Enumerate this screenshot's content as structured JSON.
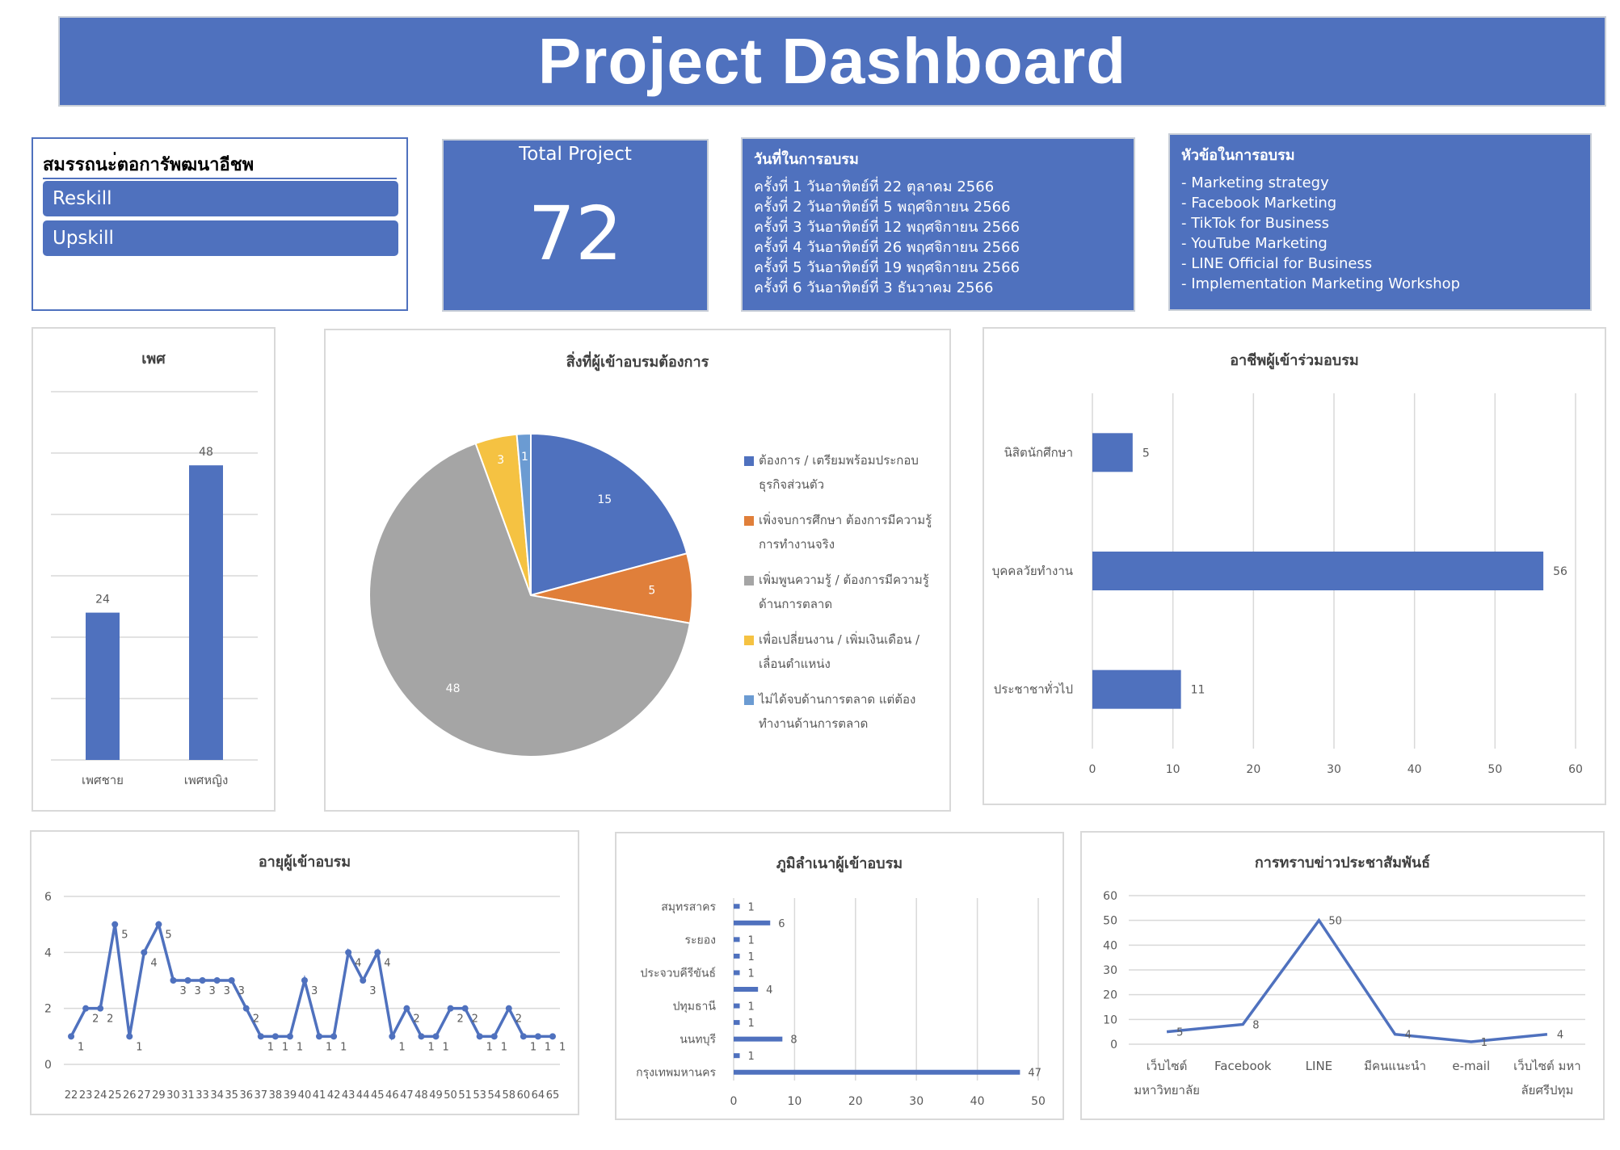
{
  "header": {
    "title": "Project Dashboard"
  },
  "slicer": {
    "title": "สมรรถนะ่ตอการัพฒนาอีชพ",
    "items": [
      "Reskill",
      "Upskill"
    ]
  },
  "total_project": {
    "label": "Total Project",
    "value": "72"
  },
  "training_dates": {
    "title": "วันที่ในการอบรม",
    "lines": [
      "ครั้งที่ 1 วันอาทิตย์ที่ 22 ตุลาคม 2566",
      "ครั้งที่ 2 วันอาทิตย์ที่ 5 พฤศจิกายน 2566",
      "ครั้งที่ 3 วันอาทิตย์ที่ 12 พฤศจิกายน 2566",
      "ครั้งที่ 4 วันอาทิตย์ที่ 26 พฤศจิกายน 2566",
      "ครั้งที่ 5 วันอาทิตย์ที่ 19 พฤศจิกายน 2566",
      "ครั้งที่ 6 วันอาทิตย์ที่ 3 ธันวาคม 2566"
    ]
  },
  "topics": {
    "title": "หัวข้อในการอบรม",
    "lines": [
      "- Marketing strategy",
      "- Facebook Marketing",
      "- TikTok for Business",
      "- YouTube Marketing",
      "- LINE Official for Business",
      "- Implementation Marketing Workshop"
    ]
  },
  "colors": {
    "accent": "#4f71be",
    "orange": "#e07f3a",
    "gray": "#a5a5a5",
    "yellow": "#f5c242",
    "lightblue": "#6b9bd2",
    "grid": "#d9d9d9"
  },
  "chart_data": [
    {
      "id": "gender",
      "type": "bar",
      "title": "เพศ",
      "categories": [
        "เพศชาย",
        "เพศหญิง"
      ],
      "values": [
        24,
        48
      ],
      "ylim": [
        0,
        60
      ],
      "grid": true
    },
    {
      "id": "needs",
      "type": "pie",
      "title": "สิ่งที่ผู้เข้าอบรมต้องการ",
      "labels": [
        "ต้องการ / เตรียมพร้อมประกอบธุรกิจส่วนตัว",
        "เพิ่งจบการศึกษา ต้องการมีความรู้การทำงานจริง",
        "เพิ่มพูนความรู้ / ต้องการมีความรู้ด้านการตลาด",
        "เพื่อเปลี่ยนงาน / เพิ่มเงินเดือน / เลื่อนตำแหน่ง",
        "ไม่ได้จบด้านการตลาด แต่ต้องทำงานด้านการตลาด"
      ],
      "legend_lines": [
        [
          "ต้องการ / เตรียมพร้อมประกอบ",
          "ธุรกิจส่วนตัว"
        ],
        [
          "เพิ่งจบการศึกษา ต้องการมีความรู้",
          "การทำงานจริง"
        ],
        [
          "เพิ่มพูนความรู้ / ต้องการมีความรู้",
          "ด้านการตลาด"
        ],
        [
          "เพื่อเปลี่ยนงาน / เพิ่มเงินเดือน /",
          "เลื่อนตำแหน่ง"
        ],
        [
          "ไม่ได้จบด้านการตลาด แต่ต้อง",
          "ทำงานด้านการตลาด"
        ]
      ],
      "values": [
        15,
        5,
        48,
        3,
        1
      ],
      "colors": [
        "#4f71be",
        "#e07f3a",
        "#a5a5a5",
        "#f5c242",
        "#6b9bd2"
      ],
      "legend": "right"
    },
    {
      "id": "occupation",
      "type": "bar",
      "orientation": "horizontal",
      "title": "อาชีพผู้เข้าร่วมอบรม",
      "categories": [
        "นิสิตนักศึกษา",
        "บุคคลวัยทำงาน",
        "ประชาชาทั่วไป"
      ],
      "values": [
        5,
        56,
        11
      ],
      "xlim": [
        0,
        60
      ],
      "xticks": [
        0,
        10,
        20,
        30,
        40,
        50,
        60
      ],
      "grid": true
    },
    {
      "id": "age",
      "type": "line",
      "title": "อายุผู้เข้าอบรม",
      "x": [
        "22",
        "23",
        "24",
        "25",
        "26",
        "27",
        "29",
        "30",
        "31",
        "33",
        "34",
        "35",
        "36",
        "37",
        "38",
        "39",
        "40",
        "41",
        "42",
        "43",
        "44",
        "45",
        "46",
        "47",
        "48",
        "49",
        "50",
        "51",
        "53",
        "54",
        "58",
        "60",
        "64",
        "65"
      ],
      "values": [
        1,
        2,
        2,
        5,
        1,
        4,
        5,
        3,
        3,
        3,
        3,
        3,
        2,
        1,
        1,
        1,
        3,
        1,
        1,
        4,
        3,
        4,
        1,
        2,
        1,
        1,
        2,
        2,
        1,
        1,
        2,
        1,
        1,
        1
      ],
      "ylim": [
        0,
        6
      ],
      "yticks": [
        0,
        2,
        4,
        6
      ],
      "grid": true
    },
    {
      "id": "hometown",
      "type": "bar",
      "orientation": "horizontal",
      "title": "ภูมิลำเนาผู้เข้าอบรม",
      "category_labels": [
        {
          "text": "สมุทรสาคร",
          "row": 0
        },
        {
          "text": "ระยอง",
          "row": 2
        },
        {
          "text": "ประจวบคีรีขันธ์",
          "row": 4
        },
        {
          "text": "ปทุมธานี",
          "row": 6
        },
        {
          "text": "นนทบุรี",
          "row": 8
        },
        {
          "text": "กรุงเทพมหานคร",
          "row": 10
        }
      ],
      "values": [
        1,
        6,
        1,
        1,
        1,
        4,
        1,
        1,
        8,
        1,
        47
      ],
      "xlim": [
        0,
        50
      ],
      "xticks": [
        0,
        10,
        20,
        30,
        40,
        50
      ],
      "grid": true
    },
    {
      "id": "news",
      "type": "line",
      "title": "การทราบข่าวประชาสัมพันธ์",
      "categories": [
        [
          "เว็บไซต์",
          "มหาวิทยาลัย"
        ],
        [
          "Facebook"
        ],
        [
          "LINE"
        ],
        [
          "มีคนแนะนำ"
        ],
        [
          "e-mail"
        ],
        [
          "เว็บไซต์ มหา",
          "ลัยศรีปทุม"
        ]
      ],
      "values": [
        5,
        8,
        50,
        4,
        1,
        4
      ],
      "ylim": [
        0,
        60
      ],
      "yticks": [
        0,
        10,
        20,
        30,
        40,
        50,
        60
      ],
      "grid": true
    }
  ]
}
